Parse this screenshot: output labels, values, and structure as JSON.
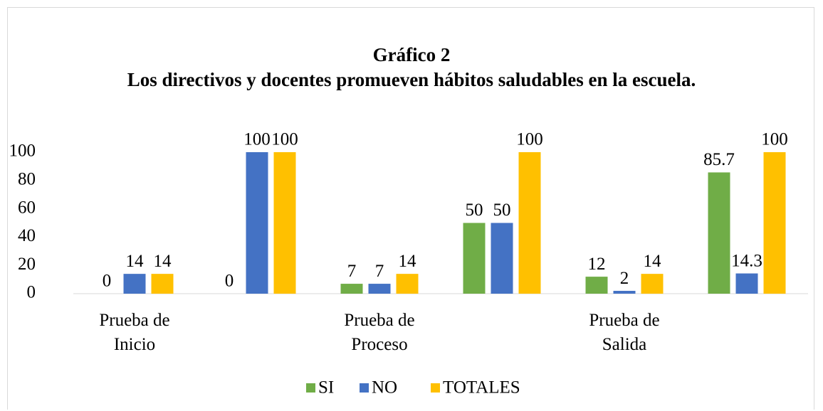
{
  "chart_data": {
    "type": "bar",
    "title": "Gráfico 2",
    "subtitle": "Los directivos y docentes promueven hábitos saludables en la escuela.",
    "categories": [
      "Prueba de\nInicio",
      null,
      "Prueba de\nProceso",
      null,
      "Prueba de\nSalida",
      null
    ],
    "series": [
      {
        "name": "SI",
        "color": "#70ad47",
        "values": [
          0,
          0,
          7,
          50,
          12,
          85.7
        ]
      },
      {
        "name": "NO",
        "color": "#4472c4",
        "values": [
          14,
          100,
          7,
          50,
          2,
          14.3
        ]
      },
      {
        "name": "TOTALES",
        "color": "#ffc000",
        "values": [
          14,
          100,
          14,
          100,
          14,
          100
        ]
      }
    ],
    "ylim": [
      0,
      100
    ],
    "yticks": [
      0,
      20,
      40,
      60,
      80,
      100
    ],
    "grid": false,
    "legend": "bottom"
  }
}
